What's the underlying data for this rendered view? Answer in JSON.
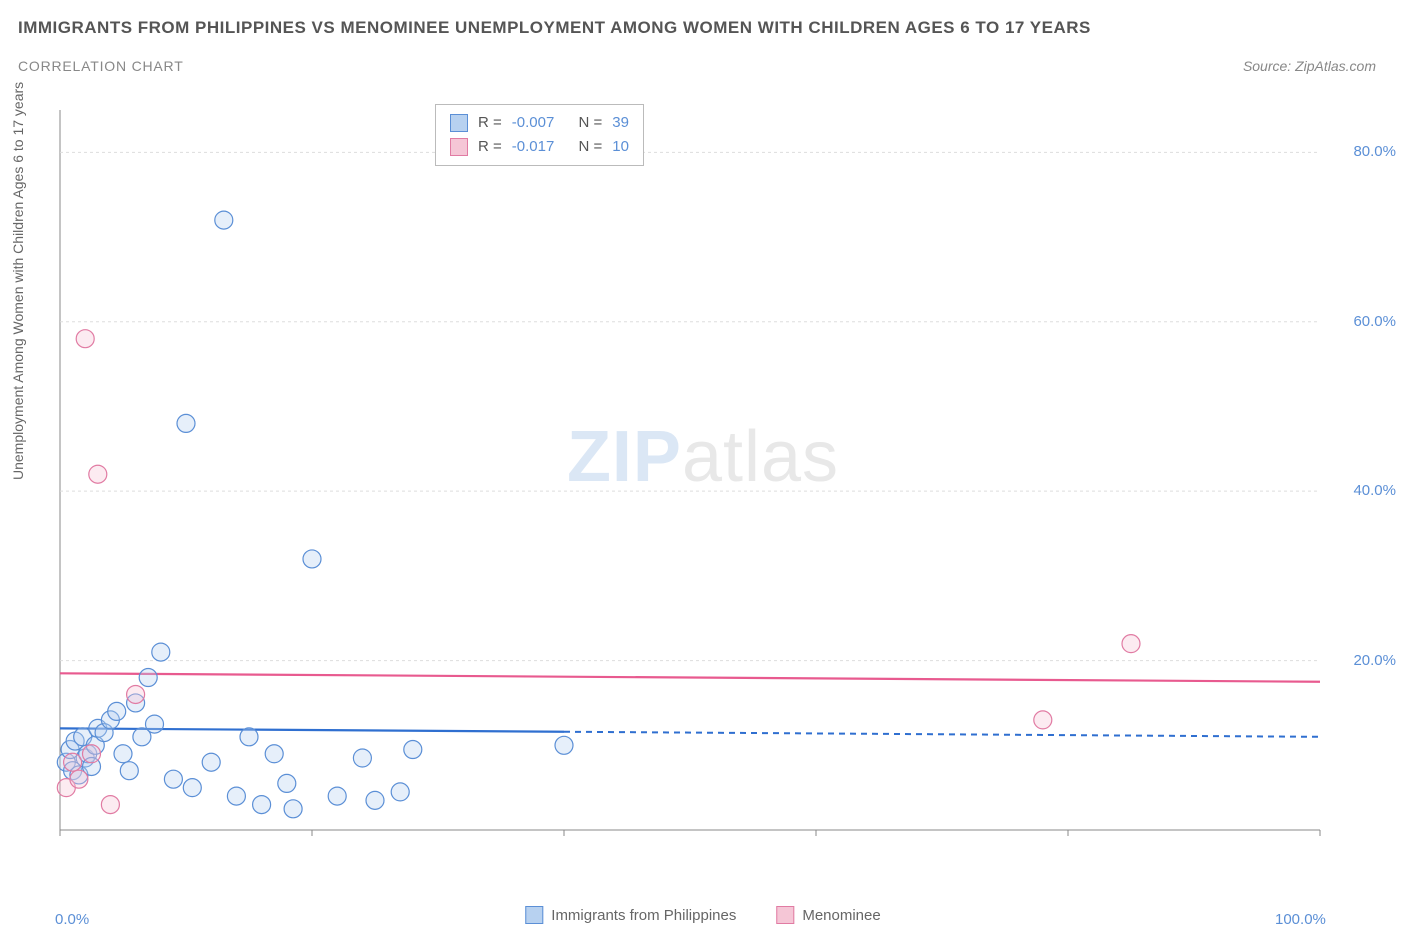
{
  "title": "IMMIGRANTS FROM PHILIPPINES VS MENOMINEE UNEMPLOYMENT AMONG WOMEN WITH CHILDREN AGES 6 TO 17 YEARS",
  "subtitle": "CORRELATION CHART",
  "source": "Source: ZipAtlas.com",
  "ylabel": "Unemployment Among Women with Children Ages 6 to 17 years",
  "watermark_a": "ZIP",
  "watermark_b": "atlas",
  "chart": {
    "type": "scatter",
    "background_color": "#ffffff",
    "grid_color": "#dddddd",
    "axis_color": "#888888",
    "tick_label_color": "#5b8fd6",
    "label_color": "#666666",
    "title_color": "#555555",
    "xlim": [
      0,
      100
    ],
    "ylim": [
      0,
      85
    ],
    "ytick_positions": [
      20,
      40,
      60,
      80
    ],
    "ytick_labels": [
      "20.0%",
      "40.0%",
      "60.0%",
      "80.0%"
    ],
    "xtick_positions": [
      0,
      20,
      40,
      60,
      80,
      100
    ],
    "xtick_end_labels": {
      "left": "0.0%",
      "right": "100.0%"
    },
    "marker_radius": 9,
    "marker_stroke_width": 1.2,
    "fill_opacity": 0.35,
    "series": [
      {
        "name": "Immigrants from Philippines",
        "color_fill": "#b7d1f0",
        "color_stroke": "#5b8fd6",
        "trend_color": "#2f6fd0",
        "trend_y_start": 12.0,
        "trend_y_end": 11.0,
        "trend_solid_until_x": 40,
        "points": [
          [
            0.5,
            8.0
          ],
          [
            0.8,
            9.5
          ],
          [
            1.0,
            7.0
          ],
          [
            1.2,
            10.5
          ],
          [
            1.5,
            6.5
          ],
          [
            1.8,
            11.0
          ],
          [
            2.0,
            8.5
          ],
          [
            2.2,
            9.0
          ],
          [
            2.5,
            7.5
          ],
          [
            2.8,
            10.0
          ],
          [
            3.0,
            12.0
          ],
          [
            3.5,
            11.5
          ],
          [
            4.0,
            13.0
          ],
          [
            4.5,
            14.0
          ],
          [
            5.0,
            9.0
          ],
          [
            5.5,
            7.0
          ],
          [
            6.0,
            15.0
          ],
          [
            6.5,
            11.0
          ],
          [
            7.0,
            18.0
          ],
          [
            7.5,
            12.5
          ],
          [
            8.0,
            21.0
          ],
          [
            9.0,
            6.0
          ],
          [
            10.0,
            48.0
          ],
          [
            10.5,
            5.0
          ],
          [
            12.0,
            8.0
          ],
          [
            13.0,
            72.0
          ],
          [
            14.0,
            4.0
          ],
          [
            15.0,
            11.0
          ],
          [
            16.0,
            3.0
          ],
          [
            17.0,
            9.0
          ],
          [
            18.0,
            5.5
          ],
          [
            18.5,
            2.5
          ],
          [
            20.0,
            32.0
          ],
          [
            22.0,
            4.0
          ],
          [
            24.0,
            8.5
          ],
          [
            25.0,
            3.5
          ],
          [
            27.0,
            4.5
          ],
          [
            28.0,
            9.5
          ],
          [
            40.0,
            10.0
          ]
        ]
      },
      {
        "name": "Menominee",
        "color_fill": "#f5c6d6",
        "color_stroke": "#e17ba3",
        "trend_color": "#e85a8f",
        "trend_y_start": 18.5,
        "trend_y_end": 17.5,
        "trend_solid_until_x": 100,
        "points": [
          [
            0.5,
            5.0
          ],
          [
            1.0,
            8.0
          ],
          [
            1.5,
            6.0
          ],
          [
            2.0,
            58.0
          ],
          [
            3.0,
            42.0
          ],
          [
            4.0,
            3.0
          ],
          [
            6.0,
            16.0
          ],
          [
            78.0,
            13.0
          ],
          [
            85.0,
            22.0
          ],
          [
            2.5,
            9.0
          ]
        ]
      }
    ],
    "top_legend": {
      "rows": [
        {
          "swatch_fill": "#b7d1f0",
          "swatch_stroke": "#5b8fd6",
          "r_label": "R =",
          "r_value": "-0.007",
          "n_label": "N =",
          "n_value": "39"
        },
        {
          "swatch_fill": "#f5c6d6",
          "swatch_stroke": "#e17ba3",
          "r_label": "R =",
          "r_value": "-0.017",
          "n_label": "N =",
          "n_value": "10"
        }
      ]
    },
    "bottom_legend": [
      {
        "swatch_fill": "#b7d1f0",
        "swatch_stroke": "#5b8fd6",
        "label": "Immigrants from Philippines"
      },
      {
        "swatch_fill": "#f5c6d6",
        "swatch_stroke": "#e17ba3",
        "label": "Menominee"
      }
    ]
  }
}
